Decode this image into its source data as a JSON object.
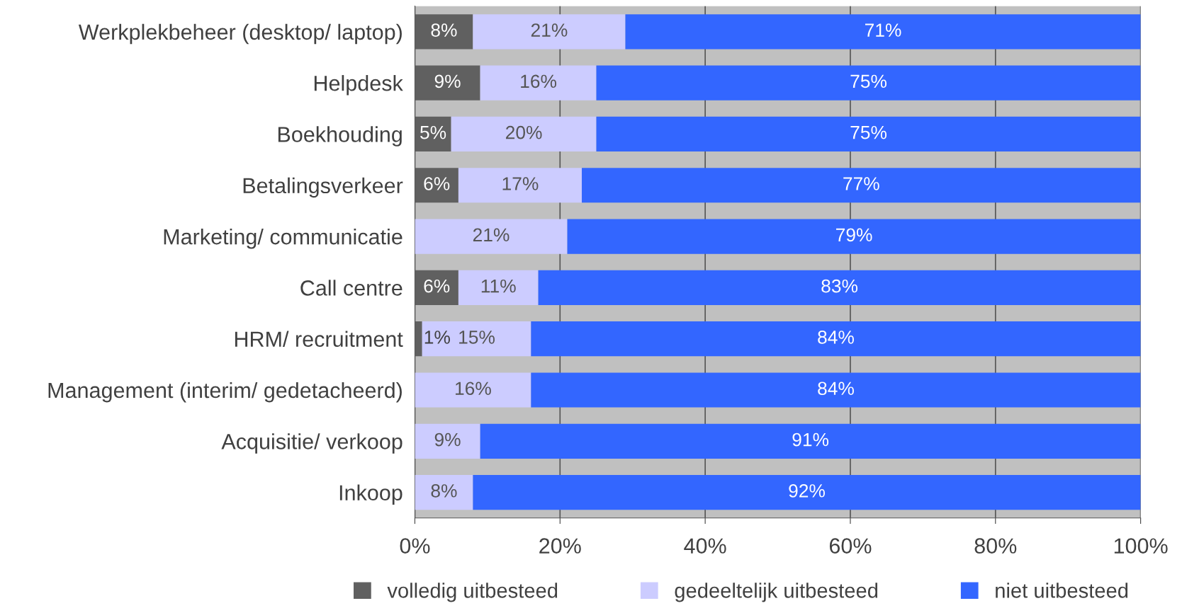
{
  "chart_data": {
    "type": "bar",
    "orientation": "horizontal",
    "stacked": true,
    "categories": [
      "Werkplekbeheer (desktop/ laptop)",
      "Helpdesk",
      "Boekhouding",
      "Betalingsverkeer",
      "Marketing/ communicatie",
      "Call centre",
      "HRM/ recruitment",
      "Management (interim/ gedetacheerd)",
      "Acquisitie/ verkoop",
      "Inkoop"
    ],
    "series": [
      {
        "name": "volledig uitbesteed",
        "color": "#606060",
        "values": [
          8,
          9,
          5,
          6,
          0,
          6,
          1,
          0,
          0,
          0
        ],
        "value_labels": [
          "8%",
          "9%",
          "5%",
          "6%",
          null,
          "6%",
          "1%",
          null,
          null,
          null
        ]
      },
      {
        "name": "gedeeltelijk uitbesteed",
        "color": "#ccccff",
        "values": [
          21,
          16,
          20,
          17,
          21,
          11,
          15,
          16,
          9,
          8
        ],
        "value_labels": [
          "21%",
          "16%",
          "20%",
          "17%",
          "21%",
          "11%",
          "15%",
          "16%",
          "9%",
          "8%"
        ]
      },
      {
        "name": "niet uitbesteed",
        "color": "#3366ff",
        "values": [
          71,
          75,
          75,
          77,
          79,
          83,
          84,
          84,
          91,
          92
        ],
        "value_labels": [
          "71%",
          "75%",
          "75%",
          "77%",
          "79%",
          "83%",
          "84%",
          "84%",
          "91%",
          "92%"
        ]
      }
    ],
    "xlim": [
      0,
      100
    ],
    "xticks": [
      {
        "value": 0,
        "label": "0%"
      },
      {
        "value": 20,
        "label": "20%"
      },
      {
        "value": 40,
        "label": "40%"
      },
      {
        "value": 60,
        "label": "60%"
      },
      {
        "value": 80,
        "label": "80%"
      },
      {
        "value": 100,
        "label": "100%"
      }
    ],
    "grid": "x",
    "legend": "bottom"
  }
}
